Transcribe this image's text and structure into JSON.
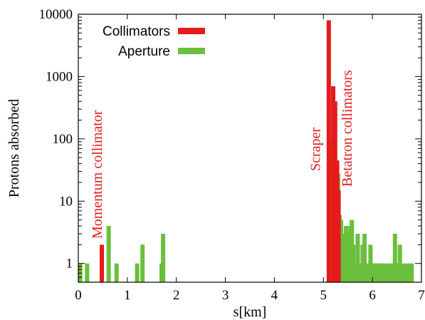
{
  "chart_data": {
    "type": "bar",
    "title": "",
    "xlabel": "s[km]",
    "ylabel": "Protons absorbed",
    "xlim": [
      0,
      7
    ],
    "ylim": [
      0.5,
      10000
    ],
    "yscale": "log",
    "xticks": [
      "0",
      "1",
      "2",
      "3",
      "4",
      "5",
      "6",
      "7"
    ],
    "yticks": [
      "1",
      "10",
      "100",
      "1000",
      "10000"
    ],
    "grid": false,
    "legend_position": "top-left",
    "series": [
      {
        "name": "Collimators",
        "color": "#e41a1c",
        "points": [
          {
            "x": 0.48,
            "y": 2
          },
          {
            "x": 5.11,
            "y": 8000
          },
          {
            "x": 5.2,
            "y": 700
          },
          {
            "x": 5.24,
            "y": 400
          },
          {
            "x": 5.28,
            "y": 45
          },
          {
            "x": 5.31,
            "y": 15
          }
        ]
      },
      {
        "name": "Aperture",
        "color": "#6abf3c",
        "points": [
          {
            "x": 0.04,
            "y": 1
          },
          {
            "x": 0.18,
            "y": 1
          },
          {
            "x": 0.62,
            "y": 4
          },
          {
            "x": 0.78,
            "y": 1
          },
          {
            "x": 1.2,
            "y": 1
          },
          {
            "x": 1.31,
            "y": 2
          },
          {
            "x": 1.7,
            "y": 1
          },
          {
            "x": 1.73,
            "y": 3
          },
          {
            "x": 5.14,
            "y": 4
          },
          {
            "x": 5.17,
            "y": 95
          },
          {
            "x": 5.2,
            "y": 30
          },
          {
            "x": 5.23,
            "y": 50
          },
          {
            "x": 5.26,
            "y": 20
          },
          {
            "x": 5.3,
            "y": 28
          },
          {
            "x": 5.33,
            "y": 6
          },
          {
            "x": 5.36,
            "y": 5
          },
          {
            "x": 5.4,
            "y": 3
          },
          {
            "x": 5.43,
            "y": 3
          },
          {
            "x": 5.46,
            "y": 4
          },
          {
            "x": 5.49,
            "y": 3
          },
          {
            "x": 5.52,
            "y": 2
          },
          {
            "x": 5.55,
            "y": 4
          },
          {
            "x": 5.58,
            "y": 5
          },
          {
            "x": 5.61,
            "y": 2
          },
          {
            "x": 5.64,
            "y": 1
          },
          {
            "x": 5.67,
            "y": 1
          },
          {
            "x": 5.7,
            "y": 3
          },
          {
            "x": 5.73,
            "y": 1
          },
          {
            "x": 5.76,
            "y": 1
          },
          {
            "x": 5.8,
            "y": 2
          },
          {
            "x": 5.84,
            "y": 3
          },
          {
            "x": 5.88,
            "y": 1
          },
          {
            "x": 5.92,
            "y": 1
          },
          {
            "x": 5.96,
            "y": 2
          },
          {
            "x": 6.0,
            "y": 1
          },
          {
            "x": 6.04,
            "y": 1
          },
          {
            "x": 6.08,
            "y": 1
          },
          {
            "x": 6.12,
            "y": 1
          },
          {
            "x": 6.16,
            "y": 1
          },
          {
            "x": 6.2,
            "y": 1
          },
          {
            "x": 6.26,
            "y": 1
          },
          {
            "x": 6.34,
            "y": 1
          },
          {
            "x": 6.42,
            "y": 1
          },
          {
            "x": 6.46,
            "y": 3
          },
          {
            "x": 6.5,
            "y": 1
          },
          {
            "x": 6.56,
            "y": 2
          },
          {
            "x": 6.64,
            "y": 1
          },
          {
            "x": 6.72,
            "y": 1
          },
          {
            "x": 6.8,
            "y": 1
          }
        ]
      }
    ],
    "annotations": [
      {
        "text": "Momentum collimator",
        "x": 0.48,
        "color": "#e41a1c"
      },
      {
        "text": "Scraper",
        "x": 4.93,
        "color": "#e41a1c"
      },
      {
        "text": "Betatron collimators",
        "x": 5.58,
        "color": "#e41a1c"
      }
    ]
  }
}
